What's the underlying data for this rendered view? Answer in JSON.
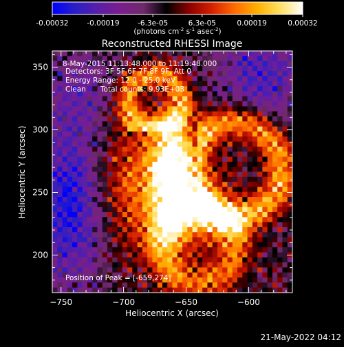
{
  "colorbar": {
    "tick_labels": [
      "-0.00032",
      "-0.00019",
      "-6.3e-05",
      "6.3e-05",
      "0.00019",
      "0.00032"
    ],
    "tick_values": [
      -0.00032,
      -0.00019,
      -6.3e-05,
      6.3e-05,
      0.00019,
      0.00032
    ],
    "range": [
      -0.00032,
      0.00032
    ],
    "unit_main": "(photons cm",
    "unit_exp1": "-2",
    "unit_mid": " s",
    "unit_exp2": "-1",
    "unit_mid2": " asec",
    "unit_exp3": "-2",
    "unit_end": ")",
    "colormap": [
      "#0000ff",
      "#2a1fc4",
      "#5a1ea8",
      "#7a1e8c",
      "#6e2a6a",
      "#000000",
      "#8a0000",
      "#d42000",
      "#ff6a00",
      "#ffb000",
      "#ffe060",
      "#ffffff"
    ]
  },
  "header": {
    "title": "Reconstructed RHESSI Image",
    "time_range": "8-May-2015 11:13:48.000 to 11:19:48.000",
    "detectors": "Detectors: 3F 5F 6F 7F 8F 9F, Att 0",
    "energy": "Energy Range: 12.0 - 25.0 keV",
    "clean_label": "Clean",
    "total_counts": "Total counts: 9.93E+03",
    "peak_position": "Position of Peak = [-659,274]"
  },
  "footer": {
    "timestamp": "21-May-2022 04:12"
  },
  "chart_data": {
    "type": "heatmap",
    "title": "Reconstructed RHESSI Image",
    "xlabel": "Heliocentric X (arcsec)",
    "ylabel": "Heliocentric Y (arcsec)",
    "xlim": [
      -757,
      -565
    ],
    "ylim": [
      170,
      363
    ],
    "x_ticks": [
      -750,
      -700,
      -650,
      -600
    ],
    "y_ticks": [
      200,
      250,
      300,
      350
    ],
    "x_tick_labels": [
      "−750",
      "−700",
      "−650",
      "−600"
    ],
    "y_tick_labels": [
      "200",
      "250",
      "300",
      "350"
    ],
    "peak": [
      -659,
      274
    ],
    "grid": false,
    "colorbar": "top",
    "structure": {
      "main_lobe_center": [
        -662,
        270
      ],
      "upper_arc_center": [
        -675,
        322
      ],
      "right_arc_center": [
        -612,
        268
      ],
      "lower_arc_center": [
        -640,
        207
      ],
      "negative_region_center": [
        -742,
        240
      ]
    }
  }
}
